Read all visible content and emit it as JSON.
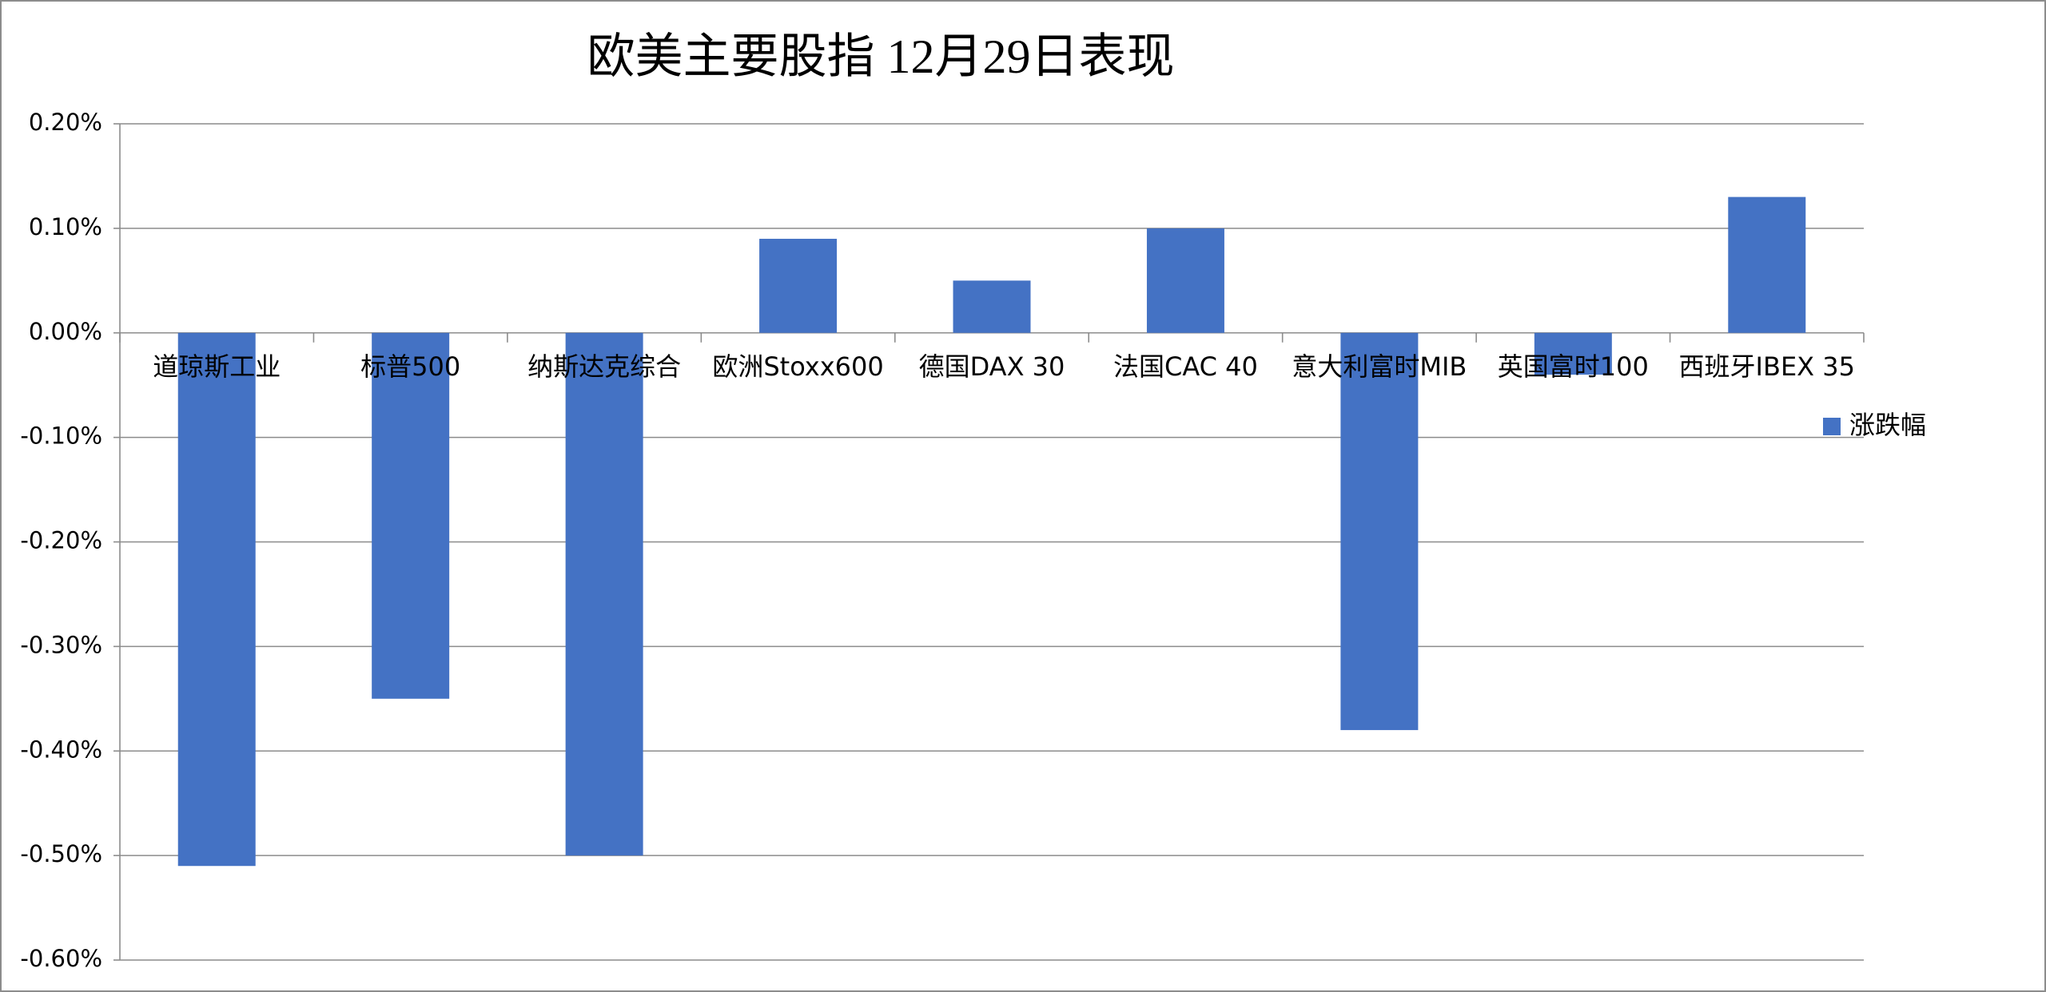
{
  "chart_data": {
    "type": "bar",
    "title": "欧美主要股指   12月29日表现",
    "categories": [
      "道琼斯工业",
      "标普500",
      "纳斯达克综合",
      "欧洲Stoxx600",
      "德国DAX 30",
      "法国CAC 40",
      "意大利富时MIB",
      "英国富时100",
      "西班牙IBEX 35"
    ],
    "series": [
      {
        "name": "涨跌幅",
        "color": "#4472c4",
        "values": [
          -0.51,
          -0.35,
          -0.5,
          0.09,
          0.05,
          0.1,
          -0.38,
          -0.04,
          0.13
        ]
      }
    ],
    "ylim": [
      -0.6,
      0.2
    ],
    "yticks": [
      {
        "value": 0.2,
        "label": "0.20%"
      },
      {
        "value": 0.1,
        "label": "0.10%"
      },
      {
        "value": 0,
        "label": "0.00%"
      },
      {
        "value": -0.1,
        "label": "-0.10%"
      },
      {
        "value": -0.2,
        "label": "-0.20%"
      },
      {
        "value": -0.3,
        "label": "-0.30%"
      },
      {
        "value": -0.4,
        "label": "-0.40%"
      },
      {
        "value": -0.5,
        "label": "-0.50%"
      },
      {
        "value": -0.6,
        "label": "-0.60%"
      }
    ],
    "grid": true,
    "legend": "right"
  }
}
